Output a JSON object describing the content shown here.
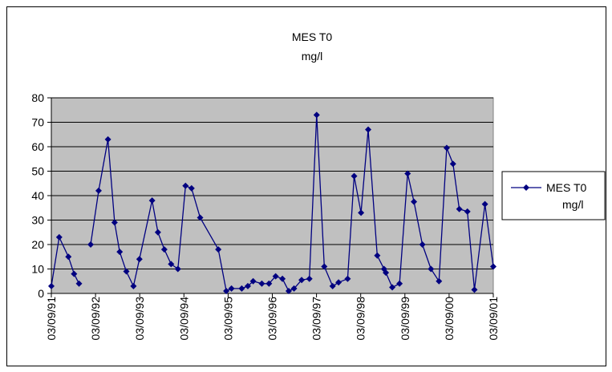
{
  "chart_data": {
    "type": "line",
    "title_line1": "MES T0",
    "title_line2": "mg/l",
    "xlabel": "",
    "ylabel": "",
    "ylim": [
      0,
      80
    ],
    "y_ticks": [
      0,
      10,
      20,
      30,
      40,
      50,
      60,
      70,
      80
    ],
    "x_range": [
      "1991-09-03",
      "2001-09-03"
    ],
    "x_tick_labels": [
      "03/09/91",
      "03/09/92",
      "03/09/93",
      "03/09/94",
      "03/09/95",
      "03/09/96",
      "03/09/97",
      "03/09/98",
      "03/09/99",
      "03/09/00",
      "03/09/01"
    ],
    "grid": true,
    "plot_background": "#c0c0c0",
    "legend": {
      "position": "right",
      "line1": "MES T0",
      "line2": "mg/l"
    },
    "series": [
      {
        "name": "MES T0 mg/l",
        "color": "#000080",
        "segments": [
          [
            [
              "1991-09-03",
              3
            ],
            [
              "1991-11-07",
              23
            ],
            [
              "1992-01-22",
              15
            ],
            [
              "1992-03-09",
              8
            ],
            [
              "1992-04-19",
              4
            ]
          ],
          [
            [
              "1992-07-24",
              20
            ],
            [
              "1992-09-28",
              42
            ],
            [
              "1992-12-14",
              63
            ],
            [
              "1993-02-07",
              29
            ],
            [
              "1993-03-21",
              17
            ],
            [
              "1993-05-15",
              9
            ],
            [
              "1993-07-13",
              3
            ],
            [
              "1993-08-31",
              14
            ],
            [
              "1993-12-14",
              38
            ],
            [
              "1994-01-31",
              25
            ],
            [
              "1994-03-25",
              18
            ],
            [
              "1994-05-20",
              12
            ],
            [
              "1994-07-15",
              10
            ],
            [
              "1994-09-16",
              44
            ],
            [
              "1994-11-05",
              43
            ],
            [
              "1995-01-15",
              31
            ],
            [
              "1995-06-14",
              18
            ],
            [
              "1995-08-19",
              1
            ],
            [
              "1995-10-01",
              2
            ],
            [
              "1995-12-25",
              2
            ],
            [
              "1996-02-13",
              3
            ],
            [
              "1996-03-28",
              5
            ],
            [
              "1996-06-08",
              4
            ],
            [
              "1996-08-06",
              4
            ],
            [
              "1996-09-30",
              7
            ],
            [
              "1996-11-25",
              6
            ],
            [
              "1997-01-16",
              1
            ],
            [
              "1997-03-01",
              2
            ],
            [
              "1997-05-03",
              5.5
            ],
            [
              "1997-07-06",
              6
            ],
            [
              "1997-09-04",
              73
            ],
            [
              "1997-11-06",
              11
            ],
            [
              "1998-01-14",
              3
            ],
            [
              "1998-03-04",
              4.5
            ],
            [
              "1998-05-18",
              6
            ],
            [
              "1998-07-11",
              48
            ],
            [
              "1998-09-06",
              33
            ],
            [
              "1998-11-04",
              67
            ],
            [
              "1999-01-18",
              15.5
            ],
            [
              "1999-03-15",
              10
            ],
            [
              "1999-03-30",
              8.5
            ],
            [
              "1999-05-22",
              2.5
            ],
            [
              "1999-07-21",
              4
            ],
            [
              "1999-09-26",
              49
            ],
            [
              "1999-11-17",
              37.5
            ],
            [
              "2000-01-26",
              20
            ],
            [
              "2000-04-06",
              10
            ],
            [
              "2000-06-11",
              5
            ],
            [
              "2000-08-14",
              59.5
            ],
            [
              "2000-10-05",
              53
            ],
            [
              "2000-11-26",
              34.5
            ],
            [
              "2001-02-01",
              33.5
            ],
            [
              "2001-03-31",
              1.5
            ],
            [
              "2001-06-26",
              36.5
            ],
            [
              "2001-09-03",
              11
            ]
          ]
        ]
      }
    ]
  }
}
